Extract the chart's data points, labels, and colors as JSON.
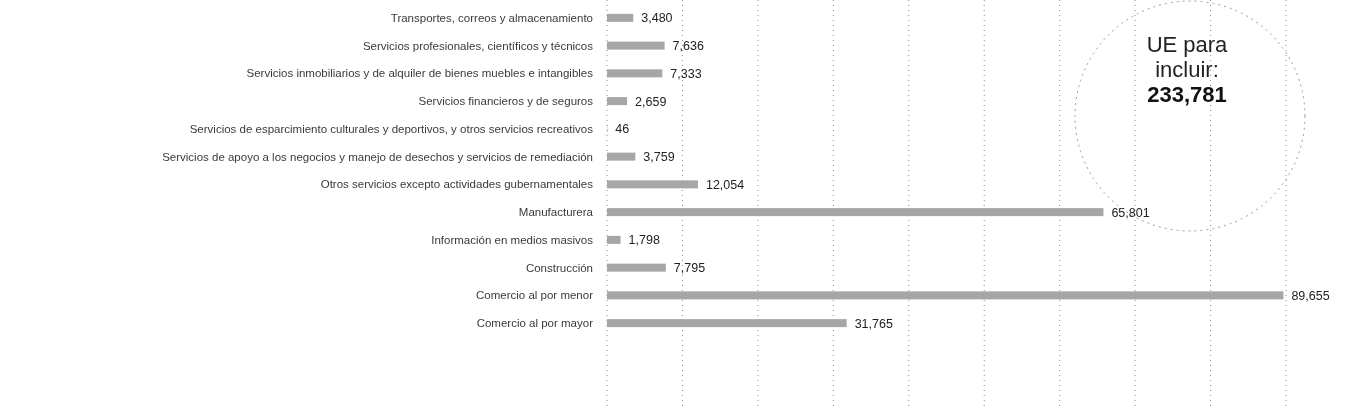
{
  "chart_data": {
    "type": "bar",
    "orientation": "horizontal",
    "categories": [
      "Transportes, correos y almacenamiento",
      "Servicios profesionales, científicos y técnicos",
      "Servicios inmobiliarios y de alquiler de bienes muebles e intangibles",
      "Servicios financieros y de seguros",
      "Servicios de esparcimiento culturales y deportivos, y otros servicios recreativos",
      "Servicios de apoyo a los negocios y manejo de desechos y servicios de remediación",
      "Otros servicios excepto actividades gubernamentales",
      "Manufacturera",
      "Información en medios masivos",
      "Construcción",
      "Comercio al por menor",
      "Comercio al por mayor"
    ],
    "values": [
      3480,
      7636,
      7333,
      2659,
      46,
      3759,
      12054,
      65801,
      1798,
      7795,
      89655,
      31765
    ],
    "value_labels": [
      "3,480",
      "7,636",
      "7,333",
      "2,659",
      "46",
      "3,759",
      "12,054",
      "65,801",
      "1,798",
      "7,795",
      "89,655",
      "31,765"
    ],
    "color": "#a6a6a6",
    "xlim": [
      0,
      90000
    ],
    "xticks": [
      {
        "value": 0,
        "label": null
      },
      {
        "value": 10000,
        "label": null
      },
      {
        "value": 20000,
        "label": null
      },
      {
        "value": 30000,
        "label": null
      },
      {
        "value": 40000,
        "label": null
      },
      {
        "value": 50000,
        "label": null
      },
      {
        "value": 60000,
        "label": null
      },
      {
        "value": 70000,
        "label": null
      },
      {
        "value": 80000,
        "label": null
      },
      {
        "value": 90000,
        "label": null
      }
    ],
    "tick_labels": "y",
    "grid": "x",
    "annotations": [
      "UE para incluir:",
      "233,781"
    ]
  }
}
